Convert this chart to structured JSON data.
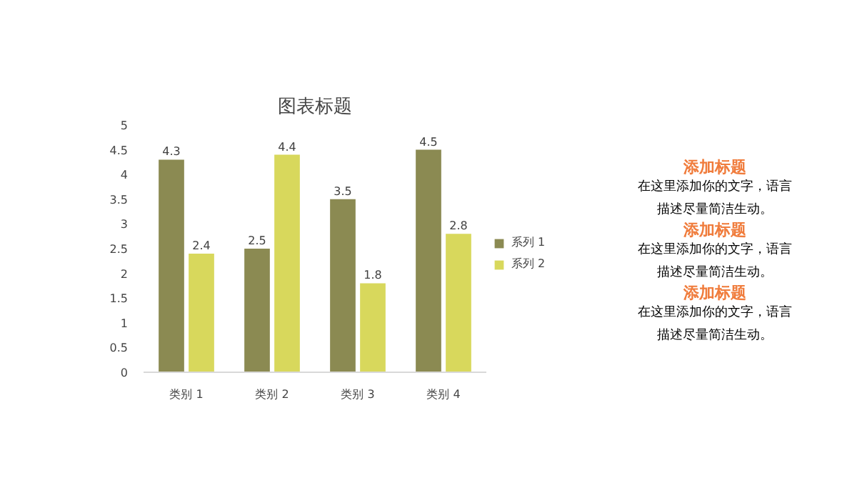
{
  "chart_data": [
    {
      "type": "bar",
      "title": "图表标题",
      "categories": [
        "类别 1",
        "类别 2",
        "类别 3",
        "类别 4"
      ],
      "series": [
        {
          "name": "系列 1",
          "color": "#8b8a52",
          "values": [
            4.3,
            2.5,
            3.5,
            4.5
          ]
        },
        {
          "name": "系列 2",
          "color": "#d8d85c",
          "values": [
            2.4,
            4.4,
            1.8,
            2.8
          ]
        }
      ],
      "ylim": [
        0,
        5
      ],
      "yticks": [
        0,
        0.5,
        1,
        1.5,
        2,
        2.5,
        3,
        3.5,
        4,
        4.5,
        5
      ],
      "grid": false,
      "legend": "right",
      "data_labels": true
    },
    {
      "type": "other",
      "color": "#f07c3c",
      "annotations": [
        "添加标题",
        "在这里添加你的文字，语言描述尽量简洁生动。",
        "添加标题",
        "在这里添加你的文字，语言描述尽量简洁生动。",
        "添加标题",
        "在这里添加你的文字，语言描述尽量简洁生动。"
      ]
    }
  ]
}
